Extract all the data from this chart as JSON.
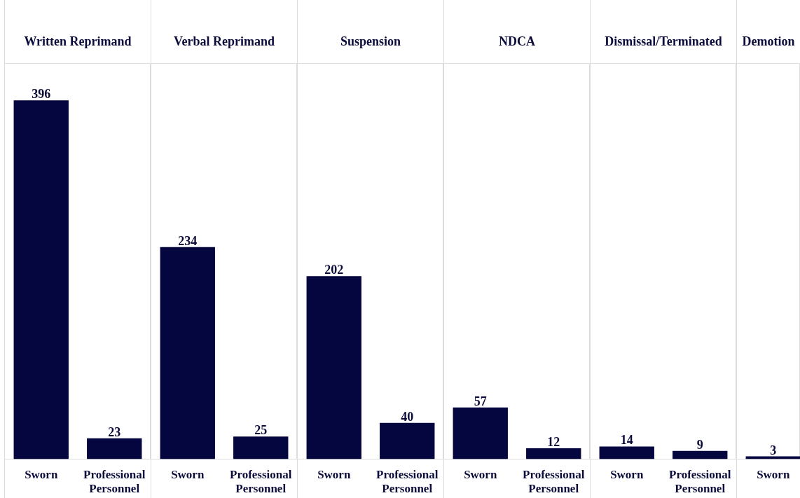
{
  "chart_data": [
    {
      "type": "bar",
      "title": "Written Reprimand",
      "categories": [
        "Sworn",
        "Professional Personnel"
      ],
      "values": [
        396,
        23
      ],
      "color": "#050540",
      "data_labels": true
    },
    {
      "type": "bar",
      "title": "Verbal Reprimand",
      "categories": [
        "Sworn",
        "Professional Personnel"
      ],
      "values": [
        234,
        25
      ],
      "color": "#050540",
      "data_labels": true
    },
    {
      "type": "bar",
      "title": "Suspension",
      "categories": [
        "Sworn",
        "Professional Personnel"
      ],
      "values": [
        202,
        40
      ],
      "color": "#050540",
      "data_labels": true
    },
    {
      "type": "bar",
      "title": "NDCA",
      "categories": [
        "Sworn",
        "Professional Personnel"
      ],
      "values": [
        57,
        12
      ],
      "color": "#050540",
      "data_labels": true
    },
    {
      "type": "bar",
      "title": "Dismissal/Terminated",
      "categories": [
        "Sworn",
        "Professional Personnel"
      ],
      "values": [
        14,
        9
      ],
      "color": "#050540",
      "data_labels": true
    },
    {
      "type": "bar",
      "title": "Demotion",
      "categories": [
        "Sworn"
      ],
      "values": [
        3
      ],
      "color": "#050540",
      "data_labels": true
    }
  ]
}
